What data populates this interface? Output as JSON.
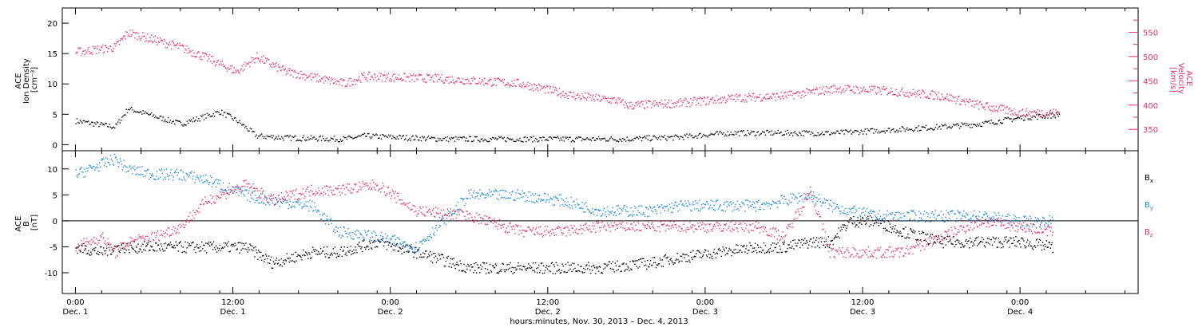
{
  "chart_data": [
    {
      "type": "scatter",
      "left_axis_label_lines": [
        "ACE",
        "Ion Density",
        "[cm⁻³]"
      ],
      "right_axis_label_lines": [
        "ACE",
        "Velocity",
        "[km/s]"
      ],
      "ylim_left": [
        -1,
        22.5
      ],
      "ylim_right": [
        306,
        600
      ],
      "y_ticks_left": [
        "0",
        "5",
        "10",
        "15",
        "20"
      ],
      "y_ticks_right": [
        "350",
        "400",
        "450",
        "500",
        "550"
      ],
      "colors": {
        "density": "#000000",
        "velocity": "#e8336a"
      },
      "x_hours": [
        0,
        3,
        4,
        8,
        10.3,
        11,
        12.3,
        13.8,
        16,
        20.5,
        22,
        28,
        34,
        38,
        41.3,
        42,
        46,
        48,
        50,
        54,
        58,
        62,
        66,
        69,
        72,
        75
      ],
      "series": [
        {
          "key": "density",
          "values": [
            4,
            3,
            6,
            3.5,
            5,
            5.5,
            4,
            1.5,
            1.2,
            1,
            1.5,
            1,
            1,
            1,
            1,
            1,
            1.3,
            1.7,
            2,
            2,
            2,
            2.5,
            3,
            3.5,
            4.5,
            5
          ]
        },
        {
          "key": "velocity",
          "values": [
            510,
            520,
            550,
            520,
            495,
            485,
            470,
            500,
            470,
            445,
            460,
            455,
            445,
            420,
            410,
            400,
            405,
            410,
            415,
            420,
            435,
            430,
            420,
            400,
            385,
            385
          ]
        }
      ]
    },
    {
      "type": "scatter",
      "left_axis_label_lines": [
        "ACE",
        "B",
        "[nT]"
      ],
      "ylim": [
        -14,
        13.5
      ],
      "y_ticks": [
        "-10",
        "-5",
        "0",
        "5",
        "10"
      ],
      "legend_items": [
        {
          "text": "Bx",
          "base": "B",
          "sub": "x",
          "color": "#000000"
        },
        {
          "text": "By",
          "base": "B",
          "sub": "y",
          "color": "#1e88e5"
        },
        {
          "text": "Bz",
          "base": "B",
          "sub": "z",
          "color": "#e8336a"
        }
      ],
      "x_hours": [
        0,
        2,
        3,
        4,
        6,
        8,
        10,
        12,
        13,
        15,
        18,
        20,
        23,
        26,
        30,
        34,
        37,
        40,
        44,
        46,
        49,
        52,
        54,
        56,
        57.5,
        59,
        61,
        63,
        66,
        69,
        72,
        74.5
      ],
      "series": [
        {
          "key": "Bx",
          "values": [
            -5,
            -6,
            -5,
            -5,
            -5,
            -5,
            -5,
            -5,
            -5,
            -8,
            -6,
            -6,
            -4,
            -6,
            -9,
            -9,
            -9,
            -9,
            -8,
            -7,
            -6,
            -5,
            -5,
            -4,
            -4,
            0,
            0,
            -2,
            -4,
            -4,
            -4,
            -5
          ]
        },
        {
          "key": "By",
          "values": [
            9,
            11,
            12,
            10,
            9,
            9,
            8,
            6,
            5,
            4,
            3,
            -2,
            -3,
            -5,
            5,
            5,
            4,
            2,
            2,
            3,
            3,
            3,
            4,
            5,
            3,
            2,
            1,
            1,
            1,
            1,
            0,
            0
          ]
        },
        {
          "key": "Bz",
          "values": [
            -5,
            -3,
            -6,
            -4,
            -3,
            -1,
            4,
            6,
            7,
            4,
            6,
            6,
            7,
            2,
            1,
            -2,
            -2,
            -1,
            -1,
            -1,
            -1,
            -1,
            -3,
            6,
            -6,
            -6,
            -6,
            -6,
            -3,
            0,
            -1,
            -2
          ]
        }
      ]
    }
  ],
  "x_axis": {
    "xlim_hours": [
      -1,
      81
    ],
    "major_ticks": [
      {
        "hour": 0,
        "time": "0:00",
        "date": "Dec. 1"
      },
      {
        "hour": 12,
        "time": "12:00",
        "date": "Dec. 1"
      },
      {
        "hour": 24,
        "time": "0:00",
        "date": "Dec. 2"
      },
      {
        "hour": 36,
        "time": "12:00",
        "date": "Dec. 2"
      },
      {
        "hour": 48,
        "time": "0:00",
        "date": "Dec. 3"
      },
      {
        "hour": 60,
        "time": "12:00",
        "date": "Dec. 3"
      },
      {
        "hour": 72,
        "time": "0:00",
        "date": "Dec. 4"
      }
    ],
    "title": "hours:minutes, Nov. 30, 2013 – Dec. 4, 2013"
  }
}
